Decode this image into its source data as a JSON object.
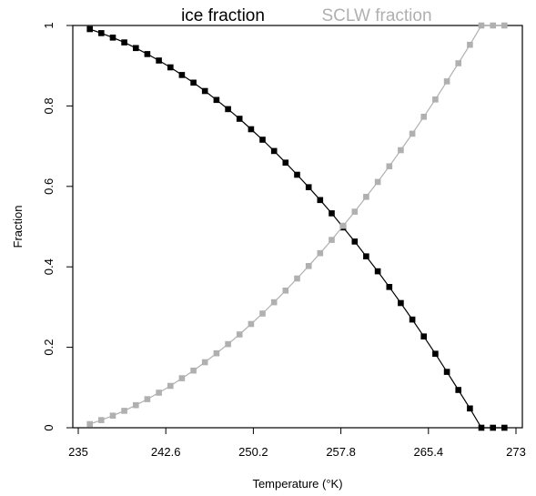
{
  "chart_data": {
    "type": "line",
    "title": "",
    "xlabel": "Temperature (°K)",
    "ylabel": "Fraction",
    "xlim": [
      235,
      273
    ],
    "ylim": [
      0,
      1
    ],
    "x_ticks": [
      "235",
      "242.6",
      "250.2",
      "257.8",
      "265.4",
      "273"
    ],
    "y_ticks": [
      "0",
      "0.2",
      "0.4",
      "0.6",
      "0.8",
      "1"
    ],
    "grid": false,
    "legend": {
      "placement": "top"
    },
    "series": [
      {
        "name": "ice fraction",
        "color": "#000000",
        "marker": "square",
        "x": [
          236,
          237,
          238,
          239,
          240,
          241,
          242,
          243,
          244,
          245,
          246,
          247,
          248,
          249,
          250,
          251,
          252,
          253,
          254,
          255,
          256,
          257,
          258,
          259,
          260,
          261,
          262,
          263,
          264,
          265,
          266,
          267,
          268,
          269,
          270,
          271,
          272
        ],
        "y": [
          0.991,
          0.981,
          0.97,
          0.958,
          0.944,
          0.929,
          0.913,
          0.896,
          0.877,
          0.858,
          0.837,
          0.815,
          0.792,
          0.768,
          0.742,
          0.716,
          0.688,
          0.659,
          0.629,
          0.598,
          0.566,
          0.533,
          0.498,
          0.463,
          0.426,
          0.389,
          0.35,
          0.31,
          0.269,
          0.227,
          0.184,
          0.139,
          0.094,
          0.048,
          0.0,
          0.0,
          0.0
        ]
      },
      {
        "name": "SCLW fraction",
        "color": "#b0b0b0",
        "marker": "square",
        "x": [
          236,
          237,
          238,
          239,
          240,
          241,
          242,
          243,
          244,
          245,
          246,
          247,
          248,
          249,
          250,
          251,
          252,
          253,
          254,
          255,
          256,
          257,
          258,
          259,
          260,
          261,
          262,
          263,
          264,
          265,
          266,
          267,
          268,
          269,
          270,
          271,
          272
        ],
        "y": [
          0.009,
          0.019,
          0.03,
          0.042,
          0.056,
          0.071,
          0.087,
          0.104,
          0.123,
          0.142,
          0.163,
          0.185,
          0.208,
          0.232,
          0.258,
          0.284,
          0.312,
          0.341,
          0.371,
          0.402,
          0.434,
          0.467,
          0.502,
          0.537,
          0.574,
          0.611,
          0.65,
          0.69,
          0.731,
          0.773,
          0.816,
          0.861,
          0.906,
          0.952,
          1.0,
          1.0,
          1.0
        ]
      }
    ]
  }
}
